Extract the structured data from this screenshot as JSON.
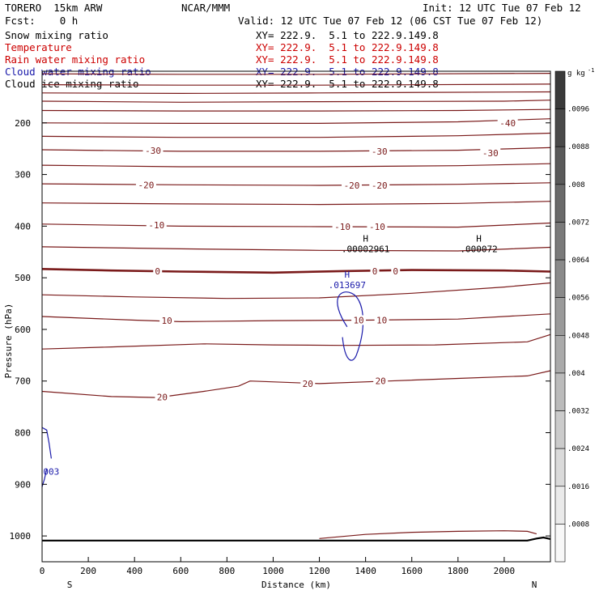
{
  "header": {
    "model": "TORERO  15km ARW",
    "center": "NCAR/MMM",
    "init": "Init: 12 UTC Tue 07 Feb 12",
    "fcst": "Fcst:    0 h",
    "valid": "Valid: 12 UTC Tue 07 Feb 12 (06 CST Tue 07 Feb 12)",
    "fields": [
      {
        "name": "Snow mixing ratio",
        "range": "XY= 222.9.  5.1 to 222.9.149.8",
        "color": "#000000"
      },
      {
        "name": "Temperature",
        "range": "XY= 222.9.  5.1 to 222.9.149.8",
        "color": "#cc0000"
      },
      {
        "name": "Rain water mixing ratio",
        "range": "XY= 222.9.  5.1 to 222.9.149.8",
        "color": "#cc0000"
      },
      {
        "name": "Cloud water mixing ratio",
        "range": "XY= 222.9.  5.1 to 222.9.149.8",
        "color": "#1a1aaa"
      },
      {
        "name": "Cloud ice mixing ratio",
        "range": "XY= 222.9.  5.1 to 222.9.149.8",
        "color": "#000000"
      }
    ]
  },
  "chart_data": {
    "type": "cross-section contour",
    "xlabel": "Distance (km)",
    "ylabel": "Pressure (hPa)",
    "xlim": [
      0,
      2200
    ],
    "ylim": [
      1050,
      100
    ],
    "x_ticks": [
      0,
      200,
      400,
      600,
      800,
      1000,
      1200,
      1400,
      1600,
      1800,
      2000
    ],
    "y_ticks": [
      200,
      300,
      400,
      500,
      600,
      700,
      800,
      900,
      1000
    ],
    "endpoints": {
      "left": "S",
      "right": "N"
    },
    "temperature_color": "#7a1a1a",
    "cloud_water_color": "#1a1aaa",
    "terrain_color": "#000000",
    "isotherms": [
      {
        "value": -45,
        "points": [
          [
            0,
            105
          ],
          [
            600,
            106
          ],
          [
            1200,
            106
          ],
          [
            2200,
            104
          ]
        ]
      },
      {
        "value": null,
        "points": [
          [
            0,
            126
          ],
          [
            600,
            127
          ],
          [
            1200,
            127
          ],
          [
            2200,
            125
          ]
        ]
      },
      {
        "value": null,
        "points": [
          [
            0,
            142
          ],
          [
            600,
            143
          ],
          [
            1200,
            142
          ],
          [
            2200,
            140
          ]
        ]
      },
      {
        "value": null,
        "points": [
          [
            0,
            158
          ],
          [
            600,
            160
          ],
          [
            1200,
            159
          ],
          [
            2000,
            158
          ],
          [
            2200,
            156
          ]
        ]
      },
      {
        "value": null,
        "points": [
          [
            0,
            176
          ],
          [
            600,
            177
          ],
          [
            1200,
            177
          ],
          [
            1800,
            176
          ],
          [
            2200,
            174
          ]
        ]
      },
      {
        "value": -40,
        "points": [
          [
            0,
            200
          ],
          [
            600,
            201
          ],
          [
            1200,
            201
          ],
          [
            1800,
            198
          ],
          [
            2200,
            192
          ]
        ]
      },
      {
        "value": -35,
        "points": [
          [
            0,
            226
          ],
          [
            600,
            228
          ],
          [
            1200,
            228
          ],
          [
            1800,
            225
          ],
          [
            2200,
            220
          ]
        ]
      },
      {
        "value": -30,
        "points": [
          [
            0,
            252
          ],
          [
            600,
            255
          ],
          [
            1200,
            255
          ],
          [
            1800,
            253
          ],
          [
            2200,
            248
          ]
        ]
      },
      {
        "value": -25,
        "points": [
          [
            0,
            282
          ],
          [
            600,
            285
          ],
          [
            1200,
            285
          ],
          [
            1800,
            283
          ],
          [
            2200,
            279
          ]
        ]
      },
      {
        "value": -20,
        "points": [
          [
            0,
            318
          ],
          [
            600,
            320
          ],
          [
            1200,
            321
          ],
          [
            1800,
            319
          ],
          [
            2200,
            316
          ]
        ]
      },
      {
        "value": -15,
        "points": [
          [
            0,
            355
          ],
          [
            600,
            357
          ],
          [
            1200,
            358
          ],
          [
            1800,
            356
          ],
          [
            2200,
            352
          ]
        ]
      },
      {
        "value": -10,
        "points": [
          [
            0,
            396
          ],
          [
            600,
            400
          ],
          [
            1200,
            401
          ],
          [
            1800,
            402
          ],
          [
            2200,
            394
          ]
        ]
      },
      {
        "value": -5,
        "points": [
          [
            0,
            440
          ],
          [
            600,
            444
          ],
          [
            1200,
            447
          ],
          [
            1800,
            448
          ],
          [
            2200,
            441
          ]
        ]
      },
      {
        "value": 0,
        "points": [
          [
            0,
            483
          ],
          [
            300,
            486
          ],
          [
            600,
            488
          ],
          [
            1000,
            490
          ],
          [
            1300,
            487
          ],
          [
            1600,
            485
          ],
          [
            2000,
            486
          ],
          [
            2200,
            488
          ]
        ]
      },
      {
        "value": 5,
        "points": [
          [
            0,
            533
          ],
          [
            400,
            537
          ],
          [
            800,
            540
          ],
          [
            1200,
            539
          ],
          [
            1600,
            530
          ],
          [
            2000,
            518
          ],
          [
            2200,
            510
          ]
        ]
      },
      {
        "value": 10,
        "points": [
          [
            0,
            575
          ],
          [
            400,
            582
          ],
          [
            600,
            585
          ],
          [
            1000,
            583
          ],
          [
            1400,
            582
          ],
          [
            1800,
            580
          ],
          [
            2200,
            570
          ]
        ]
      },
      {
        "value": 15,
        "points": [
          [
            0,
            638
          ],
          [
            300,
            634
          ],
          [
            700,
            628
          ],
          [
            1000,
            630
          ],
          [
            1300,
            631
          ],
          [
            1700,
            630
          ],
          [
            2100,
            624
          ],
          [
            2200,
            610
          ]
        ]
      },
      {
        "value": 20,
        "points": [
          [
            0,
            720
          ],
          [
            300,
            730
          ],
          [
            500,
            732
          ],
          [
            700,
            720
          ],
          [
            850,
            710
          ],
          [
            900,
            700
          ],
          [
            1200,
            705
          ],
          [
            1500,
            700
          ],
          [
            1800,
            695
          ],
          [
            2100,
            690
          ],
          [
            2200,
            680
          ]
        ]
      }
    ],
    "contour_labels": [
      {
        "text": "-40",
        "x": 2015,
        "y": 200
      },
      {
        "text": "-30",
        "x": 480,
        "y": 254
      },
      {
        "text": "-30",
        "x": 1460,
        "y": 255
      },
      {
        "text": "-30",
        "x": 1940,
        "y": 258
      },
      {
        "text": "-20",
        "x": 450,
        "y": 320
      },
      {
        "text": "-20",
        "x": 1340,
        "y": 321
      },
      {
        "text": "-20",
        "x": 1460,
        "y": 321
      },
      {
        "text": "-10",
        "x": 495,
        "y": 398
      },
      {
        "text": "-10",
        "x": 1300,
        "y": 401
      },
      {
        "text": "-10",
        "x": 1450,
        "y": 401
      },
      {
        "text": "0",
        "x": 500,
        "y": 487
      },
      {
        "text": "0",
        "x": 1440,
        "y": 487
      },
      {
        "text": "0",
        "x": 1530,
        "y": 487
      },
      {
        "text": "10",
        "x": 540,
        "y": 583
      },
      {
        "text": "10",
        "x": 1370,
        "y": 582
      },
      {
        "text": "10",
        "x": 1470,
        "y": 582
      },
      {
        "text": "20",
        "x": 520,
        "y": 731
      },
      {
        "text": "20",
        "x": 1150,
        "y": 705
      },
      {
        "text": "20",
        "x": 1465,
        "y": 700
      }
    ],
    "highs": [
      {
        "label": "H",
        "value": ".00002961",
        "x": 1400,
        "y": 430,
        "color": "#000000"
      },
      {
        "label": "H",
        "value": ".000072",
        "x": 1890,
        "y": 430,
        "color": "#000000"
      },
      {
        "label": "H",
        "value": ".013697",
        "x": 1320,
        "y": 500,
        "color": "#1a1aaa"
      }
    ],
    "cloud_water_note": "003",
    "colorbar": {
      "unit": "g kg",
      "unit_exp": "-1",
      "levels": [
        "0.0096",
        ".0088",
        ".008",
        ".0072",
        ".0064",
        ".0056",
        ".0048",
        ".004",
        ".0032",
        ".0024",
        ".0016",
        ".0008"
      ],
      "display_labels": [
        ".0096",
        ".0088",
        ".008",
        ".0072",
        ".0064",
        ".0056",
        ".0048",
        ".004",
        ".0032",
        ".0024",
        ".0016",
        ".0008"
      ],
      "colors": [
        "#3a3a3a",
        "#4a4a4a",
        "#5a5a5a",
        "#6a6a6a",
        "#7a7a7a",
        "#8a8a8a",
        "#9a9a9a",
        "#aaaaaa",
        "#bbbbbb",
        "#cbcbcb",
        "#dadada",
        "#eaeaea",
        "#f8f8f8"
      ]
    }
  }
}
